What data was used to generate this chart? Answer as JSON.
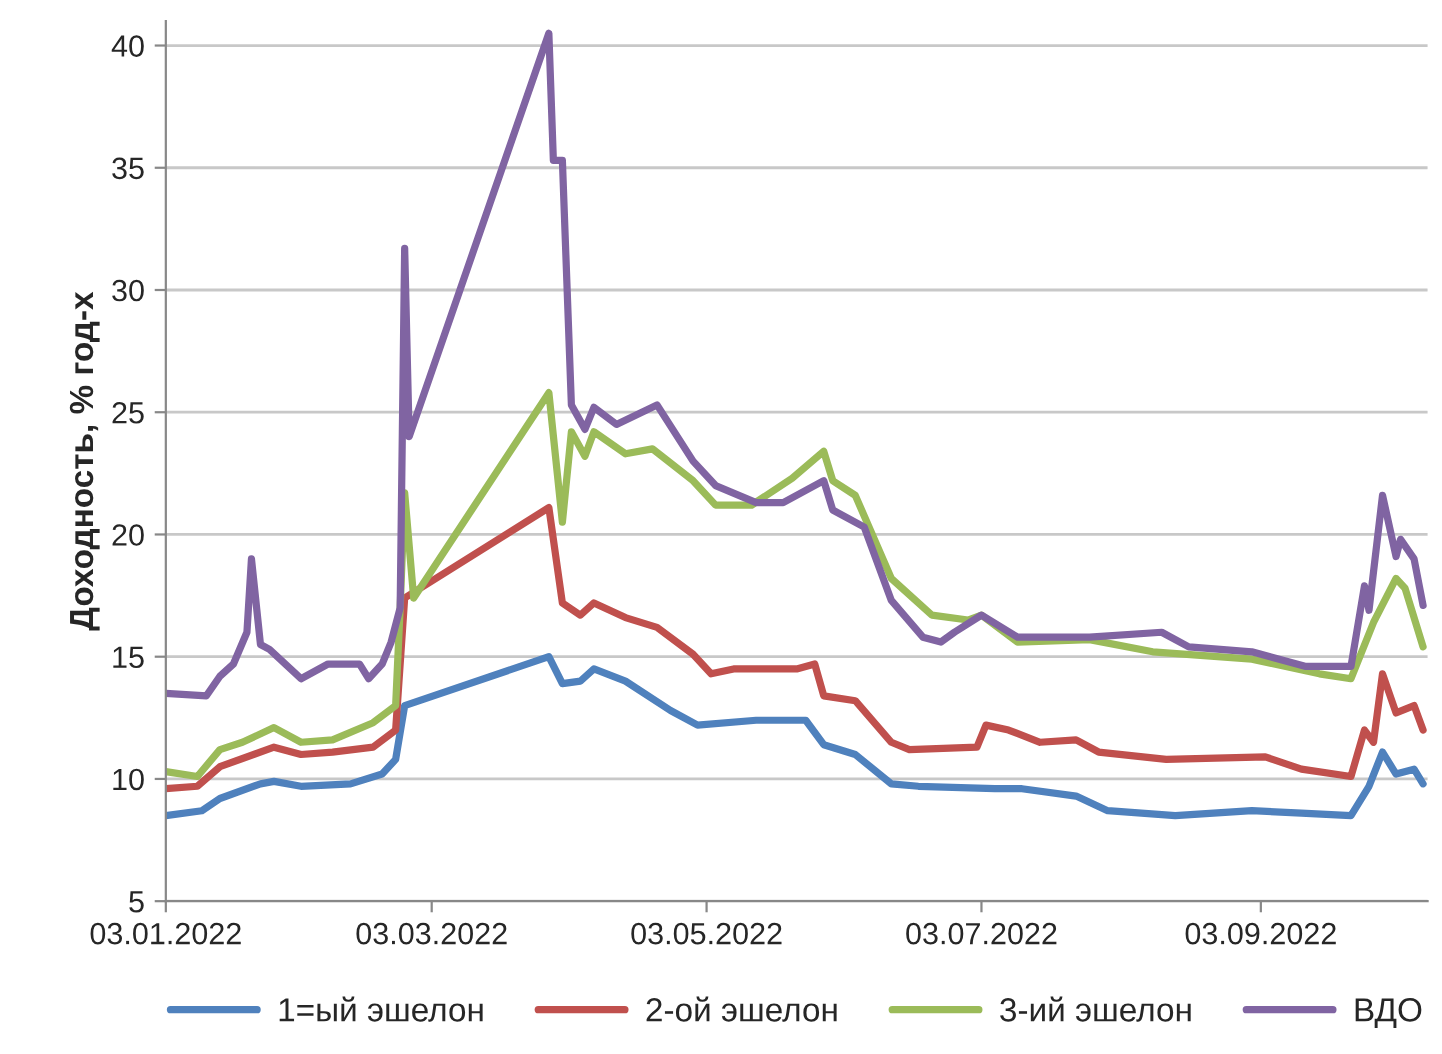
{
  "chart_data": {
    "type": "line",
    "ylabel": "Доходность, % год-х",
    "xlim": [
      "2022-01-03",
      "2022-10-10"
    ],
    "xticks": [
      {
        "value": "2022-01-03",
        "label": "03.01.2022"
      },
      {
        "value": "2022-03-03",
        "label": "03.03.2022"
      },
      {
        "value": "2022-05-03",
        "label": "03.05.2022"
      },
      {
        "value": "2022-07-03",
        "label": "03.07.2022"
      },
      {
        "value": "2022-09-03",
        "label": "03.09.2022"
      }
    ],
    "ylim": [
      5,
      41
    ],
    "yticks": [
      5,
      10,
      15,
      20,
      25,
      30,
      35,
      40
    ],
    "grid": "y",
    "legend": "bottom",
    "marker": "none",
    "line_style": "solid",
    "series": [
      {
        "name": "1=ый эшелон",
        "color": "#4f81bd",
        "x": [
          "2022-01-03",
          "2022-01-11",
          "2022-01-15",
          "2022-01-24",
          "2022-01-27",
          "2022-02-02",
          "2022-02-13",
          "2022-02-20",
          "2022-02-23",
          "2022-02-25",
          "2022-03-29",
          "2022-04-01",
          "2022-04-05",
          "2022-04-08",
          "2022-04-15",
          "2022-04-25",
          "2022-05-01",
          "2022-05-14",
          "2022-05-25",
          "2022-05-29",
          "2022-06-05",
          "2022-06-13",
          "2022-06-19",
          "2022-07-06",
          "2022-07-12",
          "2022-07-24",
          "2022-07-31",
          "2022-08-15",
          "2022-09-01",
          "2022-09-12",
          "2022-09-23",
          "2022-09-27",
          "2022-09-30",
          "2022-10-03",
          "2022-10-07",
          "2022-10-09"
        ],
        "values": [
          8.5,
          8.7,
          9.2,
          9.8,
          9.9,
          9.7,
          9.8,
          10.2,
          10.8,
          13,
          15,
          13.9,
          14,
          14.5,
          14,
          12.8,
          12.2,
          12.4,
          12.4,
          11.4,
          11,
          9.8,
          9.7,
          9.6,
          9.6,
          9.3,
          8.7,
          8.5,
          8.7,
          8.6,
          8.5,
          9.7,
          11.1,
          10.2,
          10.4,
          9.8
        ]
      },
      {
        "name": "2-ой эшелон",
        "color": "#c0504d",
        "x": [
          "2022-01-03",
          "2022-01-10",
          "2022-01-15",
          "2022-01-27",
          "2022-02-02",
          "2022-02-09",
          "2022-02-18",
          "2022-02-23",
          "2022-02-25",
          "2022-03-29",
          "2022-04-01",
          "2022-04-05",
          "2022-04-08",
          "2022-04-15",
          "2022-04-22",
          "2022-04-30",
          "2022-05-04",
          "2022-05-09",
          "2022-05-23",
          "2022-05-27",
          "2022-05-29",
          "2022-06-05",
          "2022-06-13",
          "2022-06-17",
          "2022-07-02",
          "2022-07-04",
          "2022-07-09",
          "2022-07-16",
          "2022-07-24",
          "2022-07-29",
          "2022-08-13",
          "2022-09-04",
          "2022-09-12",
          "2022-09-23",
          "2022-09-26",
          "2022-09-28",
          "2022-09-30",
          "2022-10-03",
          "2022-10-07",
          "2022-10-09"
        ],
        "values": [
          9.6,
          9.7,
          10.5,
          11.3,
          11,
          11.1,
          11.3,
          12,
          17.4,
          21.1,
          17.2,
          16.7,
          17.2,
          16.6,
          16.2,
          15.1,
          14.3,
          14.5,
          14.5,
          14.7,
          13.4,
          13.2,
          11.5,
          11.2,
          11.3,
          12.2,
          12,
          11.5,
          11.6,
          11.1,
          10.8,
          10.9,
          10.4,
          10.1,
          12,
          11.5,
          14.3,
          12.7,
          13,
          12
        ]
      },
      {
        "name": "3-ий эшелон",
        "color": "#9bbb59",
        "x": [
          "2022-01-03",
          "2022-01-10",
          "2022-01-15",
          "2022-01-20",
          "2022-01-27",
          "2022-02-02",
          "2022-02-09",
          "2022-02-18",
          "2022-02-23",
          "2022-02-24",
          "2022-02-25",
          "2022-02-27",
          "2022-03-29",
          "2022-04-01",
          "2022-04-03",
          "2022-04-06",
          "2022-04-08",
          "2022-04-15",
          "2022-04-21",
          "2022-04-30",
          "2022-05-05",
          "2022-05-13",
          "2022-05-22",
          "2022-05-29",
          "2022-05-31",
          "2022-06-05",
          "2022-06-13",
          "2022-06-22",
          "2022-06-30",
          "2022-07-03",
          "2022-07-11",
          "2022-07-27",
          "2022-08-10",
          "2022-09-01",
          "2022-09-16",
          "2022-09-23",
          "2022-09-28",
          "2022-10-03",
          "2022-10-05",
          "2022-10-09"
        ],
        "values": [
          10.3,
          10.1,
          11.2,
          11.5,
          12.1,
          11.5,
          11.6,
          12.3,
          13,
          17,
          21.7,
          17.4,
          25.8,
          20.5,
          24.2,
          23.2,
          24.2,
          23.3,
          23.5,
          22.2,
          21.2,
          21.2,
          22.3,
          23.4,
          22.2,
          21.6,
          18.2,
          16.7,
          16.5,
          16.7,
          15.6,
          15.7,
          15.2,
          14.9,
          14.3,
          14.1,
          16.4,
          18.2,
          17.8,
          15.4
        ]
      },
      {
        "name": "ВДО",
        "color": "#8064a2",
        "x": [
          "2022-01-03",
          "2022-01-12",
          "2022-01-15",
          "2022-01-18",
          "2022-01-21",
          "2022-01-22",
          "2022-01-24",
          "2022-01-26",
          "2022-02-02",
          "2022-02-08",
          "2022-02-15",
          "2022-02-17",
          "2022-02-20",
          "2022-02-22",
          "2022-02-24",
          "2022-02-25",
          "2022-02-26",
          "2022-03-29",
          "2022-03-30",
          "2022-04-01",
          "2022-04-03",
          "2022-04-06",
          "2022-04-08",
          "2022-04-13",
          "2022-04-22",
          "2022-04-30",
          "2022-05-05",
          "2022-05-14",
          "2022-05-20",
          "2022-05-29",
          "2022-05-31",
          "2022-06-07",
          "2022-06-13",
          "2022-06-20",
          "2022-06-24",
          "2022-06-27",
          "2022-07-03",
          "2022-07-11",
          "2022-07-27",
          "2022-08-12",
          "2022-08-18",
          "2022-09-01",
          "2022-09-13",
          "2022-09-23",
          "2022-09-26",
          "2022-09-27",
          "2022-09-30",
          "2022-10-03",
          "2022-10-04",
          "2022-10-07",
          "2022-10-09"
        ],
        "values": [
          13.5,
          13.4,
          14.2,
          14.7,
          16,
          19,
          15.5,
          15.3,
          14.1,
          14.7,
          14.7,
          14.1,
          14.7,
          15.6,
          17,
          31.7,
          24,
          40.5,
          35.3,
          35.3,
          25.3,
          24.3,
          25.2,
          24.5,
          25.3,
          23,
          22,
          21.3,
          21.3,
          22.2,
          21,
          20.3,
          17.3,
          15.8,
          15.6,
          16,
          16.7,
          15.8,
          15.8,
          16,
          15.4,
          15.2,
          14.6,
          14.6,
          17.9,
          16.9,
          21.6,
          19.1,
          19.8,
          19,
          17.1
        ]
      }
    ]
  }
}
